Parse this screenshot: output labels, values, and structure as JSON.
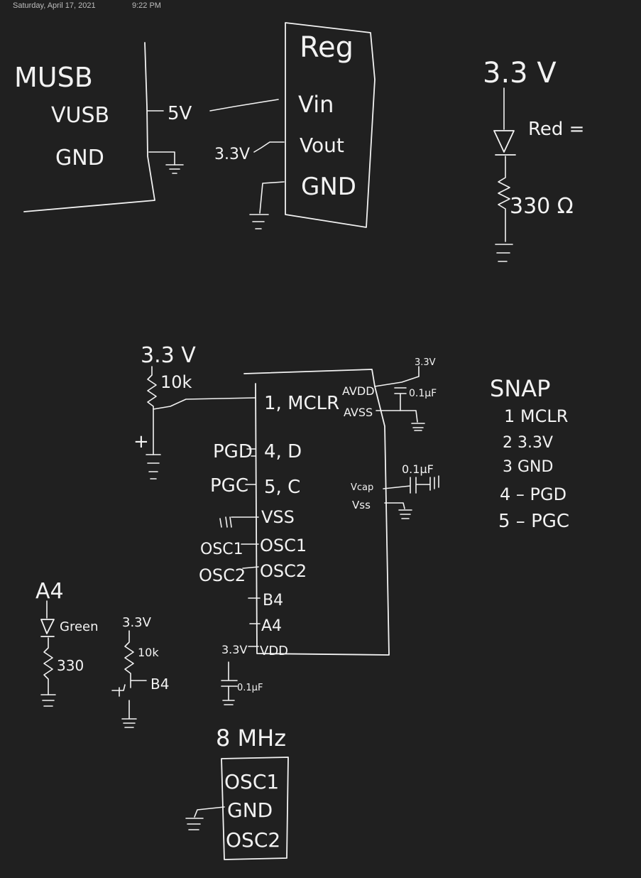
{
  "header": {
    "date": "Saturday, April 17, 2021",
    "time": "9:22 PM"
  },
  "musb": {
    "title": "MUSB",
    "vusb": "VUSB",
    "gnd": "GND",
    "v5": "5V"
  },
  "reg": {
    "title": "Reg",
    "vin": "Vin",
    "vout": "Vout",
    "gnd": "GND",
    "v33": "3.3V"
  },
  "red_led": {
    "supply": "3.3 V",
    "label": "Red =",
    "resistor": "330 Ω"
  },
  "mcu_supply": {
    "v33": "3.3 V",
    "r10k": "10k",
    "plus": "+"
  },
  "mcu": {
    "pins_left": [
      "1, MCLR",
      "4, D",
      "5, C",
      "VSS",
      "OSC1",
      "OSC2",
      "B4",
      "A4",
      "VDD"
    ],
    "pins_right": [
      "AVDD",
      "AVSS",
      "Vcap",
      "Vss"
    ],
    "net_pgd": "PGD",
    "net_pgc": "PGC",
    "net_osc1": "OSC1",
    "net_osc2": "OSC2",
    "net_vdd": "3.3V",
    "cap_avdd": "0.1μF",
    "cap_vcap": "0.1μF",
    "cap_vdd": "0.1μF",
    "avdd_supply": "3.3V"
  },
  "snap": {
    "title": "SNAP",
    "pins": [
      "1  MCLR",
      "2  3.3V",
      "3  GND",
      "4 – PGD",
      "5 – PGC"
    ]
  },
  "green_led": {
    "net": "A4",
    "label": "Green",
    "resistor": "330"
  },
  "switch": {
    "supply": "3.3V",
    "r10k": "10k",
    "net": "B4"
  },
  "crystal": {
    "title": "8 MHz",
    "pins": [
      "OSC1",
      "GND",
      "OSC2"
    ]
  }
}
